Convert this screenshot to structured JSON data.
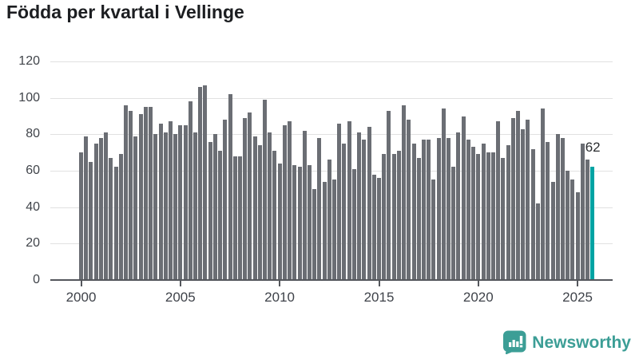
{
  "title": "Födda per kvartal i Vellinge",
  "chart_data": {
    "type": "bar",
    "title": "Födda per kvartal i Vellinge",
    "x": [
      "2000 Q1",
      "2000 Q2",
      "2000 Q3",
      "2000 Q4",
      "2001 Q1",
      "2001 Q2",
      "2001 Q3",
      "2001 Q4",
      "2002 Q1",
      "2002 Q2",
      "2002 Q3",
      "2002 Q4",
      "2003 Q1",
      "2003 Q2",
      "2003 Q3",
      "2003 Q4",
      "2004 Q1",
      "2004 Q2",
      "2004 Q3",
      "2004 Q4",
      "2005 Q1",
      "2005 Q2",
      "2005 Q3",
      "2005 Q4",
      "2006 Q1",
      "2006 Q2",
      "2006 Q3",
      "2006 Q4",
      "2007 Q1",
      "2007 Q2",
      "2007 Q3",
      "2007 Q4",
      "2008 Q1",
      "2008 Q2",
      "2008 Q3",
      "2008 Q4",
      "2009 Q1",
      "2009 Q2",
      "2009 Q3",
      "2009 Q4",
      "2010 Q1",
      "2010 Q2",
      "2010 Q3",
      "2010 Q4",
      "2011 Q1",
      "2011 Q2",
      "2011 Q3",
      "2011 Q4",
      "2012 Q1",
      "2012 Q2",
      "2012 Q3",
      "2012 Q4",
      "2013 Q1",
      "2013 Q2",
      "2013 Q3",
      "2013 Q4",
      "2014 Q1",
      "2014 Q2",
      "2014 Q3",
      "2014 Q4",
      "2015 Q1",
      "2015 Q2",
      "2015 Q3",
      "2015 Q4",
      "2016 Q1",
      "2016 Q2",
      "2016 Q3",
      "2016 Q4",
      "2017 Q1",
      "2017 Q2",
      "2017 Q3",
      "2017 Q4",
      "2018 Q1",
      "2018 Q2",
      "2018 Q3",
      "2018 Q4",
      "2019 Q1",
      "2019 Q2",
      "2019 Q3",
      "2019 Q4",
      "2020 Q1",
      "2020 Q2",
      "2020 Q3",
      "2020 Q4",
      "2021 Q1",
      "2021 Q2",
      "2021 Q3",
      "2021 Q4",
      "2022 Q1",
      "2022 Q2",
      "2022 Q3",
      "2022 Q4",
      "2023 Q1",
      "2023 Q2",
      "2023 Q3",
      "2023 Q4",
      "2024 Q1",
      "2024 Q2",
      "2024 Q3",
      "2024 Q4",
      "2025 Q1",
      "2025 Q2",
      "2025 Q3",
      "2025 Q4"
    ],
    "values": [
      70,
      79,
      65,
      75,
      78,
      81,
      67,
      62,
      69,
      96,
      93,
      79,
      91,
      95,
      95,
      80,
      86,
      81,
      87,
      80,
      85,
      85,
      98,
      81,
      106,
      107,
      76,
      80,
      71,
      88,
      102,
      68,
      68,
      89,
      92,
      79,
      74,
      99,
      81,
      71,
      64,
      85,
      87,
      63,
      62,
      82,
      63,
      50,
      78,
      54,
      66,
      55,
      86,
      75,
      87,
      61,
      81,
      77,
      84,
      58,
      56,
      69,
      93,
      69,
      71,
      96,
      88,
      75,
      67,
      77,
      77,
      55,
      78,
      94,
      78,
      62,
      81,
      90,
      77,
      73,
      69,
      75,
      70,
      70,
      87,
      67,
      74,
      89,
      93,
      83,
      88,
      72,
      42,
      94,
      76,
      54,
      80,
      78,
      60,
      55,
      48,
      75,
      66,
      62
    ],
    "highlight_index": 103,
    "highlight_value_label": "62",
    "ylim": [
      0,
      120
    ],
    "yticks": [
      0,
      20,
      40,
      60,
      80,
      100,
      120
    ],
    "xtick_years": [
      "2000",
      "2005",
      "2010",
      "2015",
      "2020",
      "2025"
    ],
    "bar_color": "#6b6e74",
    "highlight_color": "#00a3a3",
    "grid": true,
    "legend": "none"
  },
  "footer": {
    "brand": "Newsworthy",
    "brand_color": "#3c9e96",
    "logo_icon": "chart-speech-bubble-icon"
  }
}
